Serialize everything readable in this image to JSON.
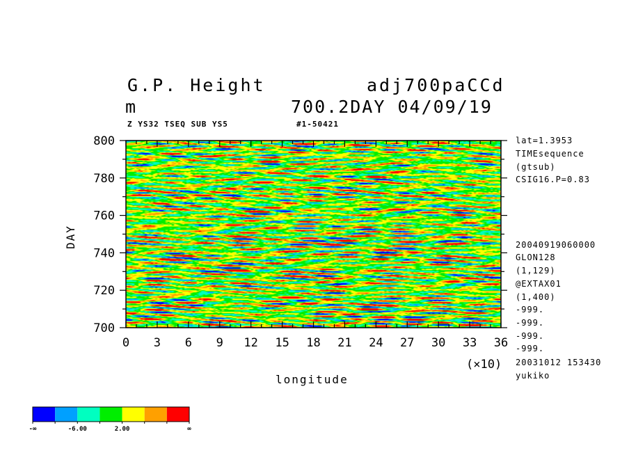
{
  "header": {
    "title_left": "G.P. Height",
    "title_right": "adj700paCCd",
    "unit": "m",
    "subtitle_right": "700.2DAY 04/09/19",
    "small_left": "Z YS32 TSEQ SUB YS5",
    "small_right": "#1-50421"
  },
  "side_info": {
    "top": [
      "lat=1.3953",
      "TIMEsequence",
      "(gtsub)",
      "CSIG16.P=0.83"
    ],
    "bottom": [
      "20040919060000",
      "GLON128",
      "(1,129)",
      "@EXTAX01",
      "(1,400)",
      "-999.",
      "-999.",
      "-999.",
      "-999.",
      "20031012 153430",
      "yukiko"
    ]
  },
  "chart_data": {
    "type": "heatmap",
    "xlabel": "longitude",
    "ylabel": "DAY",
    "x_multiplier_label": "(×10)",
    "xlim": [
      0,
      36
    ],
    "ylim": [
      700,
      800
    ],
    "x_ticks": [
      "0",
      "3",
      "6",
      "9",
      "12",
      "15",
      "18",
      "21",
      "24",
      "27",
      "30",
      "33",
      "36"
    ],
    "y_ticks": [
      "700",
      "720",
      "740",
      "760",
      "780",
      "800"
    ],
    "colorbar": {
      "colors": [
        "#0000ff",
        "#00a0ff",
        "#00ffc0",
        "#00ee00",
        "#ffff00",
        "#ffa000",
        "#ff0000"
      ],
      "labels": [
        "-∞",
        "-6.00",
        "2.00",
        "∞"
      ]
    }
  }
}
